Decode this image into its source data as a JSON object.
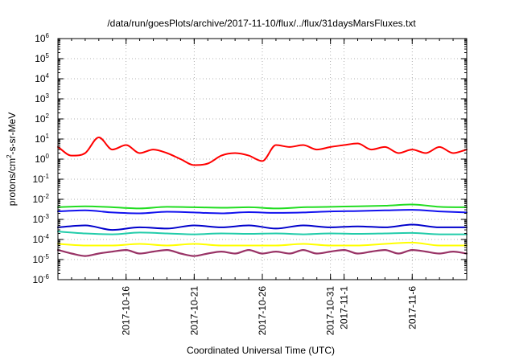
{
  "chart_data": {
    "type": "line",
    "title": "/data/run/goesPlots/archive/2017-11-10/flux/../flux/31daysMarsFluxes.txt",
    "xlabel": "Coordinated Universal Time (UTC)",
    "ylabel": {
      "base": "protons/cm",
      "sup": "2",
      "rest": "-s-sr-MeV"
    },
    "y_scale": "log",
    "ylim_exponents": [
      -6,
      6
    ],
    "y_ticks": [
      {
        "base": "10",
        "exp": "-6"
      },
      {
        "base": "10",
        "exp": "-5"
      },
      {
        "base": "10",
        "exp": "-4"
      },
      {
        "base": "10",
        "exp": "-3"
      },
      {
        "base": "10",
        "exp": "-2"
      },
      {
        "base": "10",
        "exp": "-1"
      },
      {
        "base": "10",
        "exp": "0"
      },
      {
        "base": "10",
        "exp": "1"
      },
      {
        "base": "10",
        "exp": "2"
      },
      {
        "base": "10",
        "exp": "3"
      },
      {
        "base": "10",
        "exp": "4"
      },
      {
        "base": "10",
        "exp": "5"
      },
      {
        "base": "10",
        "exp": "6"
      }
    ],
    "xlim": [
      "2017-10-11",
      "2017-11-10"
    ],
    "x_ticks": [
      {
        "date": "2017-10-16",
        "label": "2017-10-16"
      },
      {
        "date": "2017-10-21",
        "label": "2017-10-21"
      },
      {
        "date": "2017-10-26",
        "label": "2017-10-26"
      },
      {
        "date": "2017-10-31",
        "label": "2017-10-31"
      },
      {
        "date": "2017-11-01",
        "label": "2017-11-1"
      },
      {
        "date": "2017-11-06",
        "label": "2017-11-6"
      }
    ],
    "grid": true,
    "series": [
      {
        "color": "#ff0000",
        "x": [
          "2017-10-11",
          "2017-10-12",
          "2017-10-13",
          "2017-10-14",
          "2017-10-15",
          "2017-10-16",
          "2017-10-17",
          "2017-10-18",
          "2017-10-19",
          "2017-10-20",
          "2017-10-21",
          "2017-10-22",
          "2017-10-23",
          "2017-10-24",
          "2017-10-25",
          "2017-10-26",
          "2017-10-27",
          "2017-10-28",
          "2017-10-29",
          "2017-10-30",
          "2017-10-31",
          "2017-11-01",
          "2017-11-02",
          "2017-11-03",
          "2017-11-04",
          "2017-11-05",
          "2017-11-06",
          "2017-11-07",
          "2017-11-08",
          "2017-11-09",
          "2017-11-10"
        ],
        "values": [
          4,
          1.5,
          2,
          12,
          3,
          5,
          2,
          3,
          2,
          1,
          0.5,
          0.6,
          1.5,
          2,
          1.5,
          0.8,
          5,
          4,
          5,
          3,
          4,
          5,
          6,
          3,
          4,
          2,
          3,
          2,
          4,
          2,
          3
        ]
      },
      {
        "color": "#22dd22",
        "x": [
          "2017-10-11",
          "2017-10-13",
          "2017-10-15",
          "2017-10-17",
          "2017-10-19",
          "2017-10-21",
          "2017-10-23",
          "2017-10-25",
          "2017-10-27",
          "2017-10-29",
          "2017-10-31",
          "2017-11-02",
          "2017-11-04",
          "2017-11-06",
          "2017-11-08",
          "2017-11-10"
        ],
        "values": [
          0.004,
          0.0045,
          0.004,
          0.0035,
          0.0042,
          0.004,
          0.0038,
          0.004,
          0.0035,
          0.004,
          0.0042,
          0.0045,
          0.0048,
          0.0055,
          0.0042,
          0.004
        ]
      },
      {
        "color": "#1111ee",
        "x": [
          "2017-10-11",
          "2017-10-13",
          "2017-10-15",
          "2017-10-17",
          "2017-10-19",
          "2017-10-21",
          "2017-10-23",
          "2017-10-25",
          "2017-10-27",
          "2017-10-29",
          "2017-10-31",
          "2017-11-02",
          "2017-11-04",
          "2017-11-06",
          "2017-11-08",
          "2017-11-10"
        ],
        "values": [
          0.0025,
          0.0028,
          0.0022,
          0.002,
          0.0024,
          0.0022,
          0.002,
          0.0023,
          0.0021,
          0.0022,
          0.0025,
          0.0026,
          0.0028,
          0.003,
          0.0025,
          0.0022
        ]
      },
      {
        "color": "#0000cc",
        "x": [
          "2017-10-11",
          "2017-10-13",
          "2017-10-15",
          "2017-10-17",
          "2017-10-19",
          "2017-10-21",
          "2017-10-23",
          "2017-10-25",
          "2017-10-27",
          "2017-10-29",
          "2017-10-31",
          "2017-11-02",
          "2017-11-04",
          "2017-11-06",
          "2017-11-08",
          "2017-11-10"
        ],
        "values": [
          0.0004,
          0.0005,
          0.0003,
          0.0004,
          0.00035,
          0.0005,
          0.0004,
          0.0005,
          0.00035,
          0.0005,
          0.0004,
          0.00045,
          0.0004,
          0.00055,
          0.0004,
          0.0004
        ]
      },
      {
        "color": "#22ccaa",
        "x": [
          "2017-10-11",
          "2017-10-13",
          "2017-10-15",
          "2017-10-17",
          "2017-10-19",
          "2017-10-21",
          "2017-10-23",
          "2017-10-25",
          "2017-10-27",
          "2017-10-29",
          "2017-10-31",
          "2017-11-02",
          "2017-11-04",
          "2017-11-06",
          "2017-11-08",
          "2017-11-10"
        ],
        "values": [
          0.00025,
          0.0002,
          0.00018,
          0.00022,
          0.0002,
          0.00018,
          0.0002,
          0.00019,
          0.0002,
          0.00018,
          0.0002,
          0.00019,
          0.0002,
          0.00021,
          0.00018,
          0.00018
        ]
      },
      {
        "color": "#ffff00",
        "x": [
          "2017-10-11",
          "2017-10-13",
          "2017-10-15",
          "2017-10-17",
          "2017-10-19",
          "2017-10-21",
          "2017-10-23",
          "2017-10-25",
          "2017-10-27",
          "2017-10-29",
          "2017-10-31",
          "2017-11-02",
          "2017-11-04",
          "2017-11-06",
          "2017-11-08",
          "2017-11-10"
        ],
        "values": [
          6e-05,
          5e-05,
          5e-05,
          6e-05,
          5e-05,
          6e-05,
          5e-05,
          5e-05,
          5e-05,
          6e-05,
          5e-05,
          5e-05,
          6e-05,
          7e-05,
          5e-05,
          5e-05
        ]
      },
      {
        "color": "#993366",
        "x": [
          "2017-10-11",
          "2017-10-12",
          "2017-10-13",
          "2017-10-14",
          "2017-10-15",
          "2017-10-16",
          "2017-10-17",
          "2017-10-18",
          "2017-10-19",
          "2017-10-20",
          "2017-10-21",
          "2017-10-22",
          "2017-10-23",
          "2017-10-24",
          "2017-10-25",
          "2017-10-26",
          "2017-10-27",
          "2017-10-28",
          "2017-10-29",
          "2017-10-30",
          "2017-10-31",
          "2017-11-01",
          "2017-11-02",
          "2017-11-03",
          "2017-11-04",
          "2017-11-05",
          "2017-11-06",
          "2017-11-07",
          "2017-11-08",
          "2017-11-09",
          "2017-11-10"
        ],
        "values": [
          3e-05,
          2e-05,
          1.5e-05,
          2e-05,
          2.5e-05,
          3e-05,
          2e-05,
          2.5e-05,
          3e-05,
          2e-05,
          1.5e-05,
          2e-05,
          2.5e-05,
          2e-05,
          3e-05,
          2e-05,
          2.5e-05,
          2e-05,
          3e-05,
          2e-05,
          2.5e-05,
          3e-05,
          2e-05,
          2.5e-05,
          3e-05,
          2e-05,
          3e-05,
          2.5e-05,
          2e-05,
          2.5e-05,
          2e-05
        ]
      }
    ]
  }
}
